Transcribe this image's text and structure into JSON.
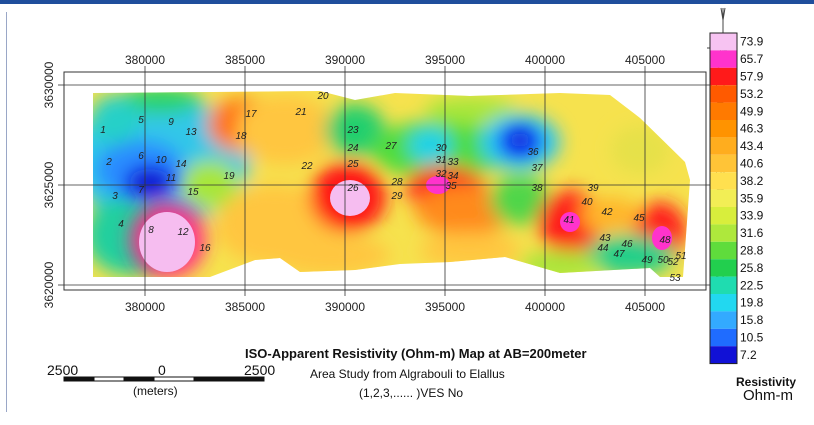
{
  "map": {
    "title": "ISO-Apparent Resistivity (Ohm-m) Map at AB=200meter",
    "subtitle": "Area Study from Algrabouli to Elallus",
    "ves_note": "(1,2,3,...... )VES No",
    "x_ticks": [
      "380000",
      "385000",
      "390000",
      "395000",
      "400000",
      "405000"
    ],
    "y_ticks": [
      "3630000",
      "3625000",
      "3620000"
    ],
    "north_label": "N",
    "ves_points": [
      {
        "label": "1",
        "x": 377900,
        "y": 3627600
      },
      {
        "label": "2",
        "x": 378200,
        "y": 3626000
      },
      {
        "label": "3",
        "x": 378500,
        "y": 3624300
      },
      {
        "label": "4",
        "x": 378800,
        "y": 3622900
      },
      {
        "label": "5",
        "x": 379800,
        "y": 3628100
      },
      {
        "label": "6",
        "x": 379800,
        "y": 3626300
      },
      {
        "label": "7",
        "x": 379800,
        "y": 3624600
      },
      {
        "label": "8",
        "x": 380300,
        "y": 3622600
      },
      {
        "label": "9",
        "x": 381300,
        "y": 3628000
      },
      {
        "label": "10",
        "x": 380800,
        "y": 3626100
      },
      {
        "label": "11",
        "x": 381300,
        "y": 3625200
      },
      {
        "label": "12",
        "x": 381900,
        "y": 3622500
      },
      {
        "label": "13",
        "x": 382300,
        "y": 3627500
      },
      {
        "label": "14",
        "x": 381800,
        "y": 3625900
      },
      {
        "label": "15",
        "x": 382400,
        "y": 3624500
      },
      {
        "label": "16",
        "x": 383000,
        "y": 3621700
      },
      {
        "label": "17",
        "x": 385300,
        "y": 3628400
      },
      {
        "label": "18",
        "x": 384800,
        "y": 3627300
      },
      {
        "label": "19",
        "x": 384200,
        "y": 3625300
      },
      {
        "label": "20",
        "x": 388900,
        "y": 3629300
      },
      {
        "label": "21",
        "x": 387800,
        "y": 3628500
      },
      {
        "label": "22",
        "x": 388100,
        "y": 3625800
      },
      {
        "label": "23",
        "x": 390400,
        "y": 3627600
      },
      {
        "label": "24",
        "x": 390400,
        "y": 3626700
      },
      {
        "label": "25",
        "x": 390400,
        "y": 3625900
      },
      {
        "label": "26",
        "x": 390400,
        "y": 3624700
      },
      {
        "label": "27",
        "x": 392300,
        "y": 3626800
      },
      {
        "label": "28",
        "x": 392600,
        "y": 3625000
      },
      {
        "label": "29",
        "x": 392600,
        "y": 3624300
      },
      {
        "label": "30",
        "x": 394800,
        "y": 3626700
      },
      {
        "label": "31",
        "x": 394800,
        "y": 3626100
      },
      {
        "label": "32",
        "x": 394800,
        "y": 3625400
      },
      {
        "label": "33",
        "x": 395400,
        "y": 3626000
      },
      {
        "label": "34",
        "x": 395400,
        "y": 3625300
      },
      {
        "label": "35",
        "x": 395300,
        "y": 3624800
      },
      {
        "label": "36",
        "x": 399400,
        "y": 3626500
      },
      {
        "label": "37",
        "x": 399600,
        "y": 3625700
      },
      {
        "label": "38",
        "x": 399600,
        "y": 3624700
      },
      {
        "label": "39",
        "x": 402400,
        "y": 3624700
      },
      {
        "label": "40",
        "x": 402100,
        "y": 3624000
      },
      {
        "label": "41",
        "x": 401200,
        "y": 3623100
      },
      {
        "label": "42",
        "x": 403100,
        "y": 3623500
      },
      {
        "label": "43",
        "x": 403000,
        "y": 3622200
      },
      {
        "label": "44",
        "x": 402900,
        "y": 3621700
      },
      {
        "label": "45",
        "x": 404700,
        "y": 3623200
      },
      {
        "label": "46",
        "x": 404100,
        "y": 3621900
      },
      {
        "label": "47",
        "x": 403700,
        "y": 3621400
      },
      {
        "label": "48",
        "x": 406000,
        "y": 3622100
      },
      {
        "label": "49",
        "x": 405100,
        "y": 3621100
      },
      {
        "label": "50",
        "x": 405900,
        "y": 3621100
      },
      {
        "label": "51",
        "x": 406800,
        "y": 3621300
      },
      {
        "label": "52",
        "x": 406400,
        "y": 3621000
      },
      {
        "label": "53",
        "x": 406500,
        "y": 3620200
      }
    ]
  },
  "scale_bar": {
    "left_label": "2500",
    "middle_label": "0",
    "right_label": "2500",
    "unit_label": "(meters)"
  },
  "legend": {
    "values": [
      "73.9",
      "65.7",
      "57.9",
      "53.2",
      "49.9",
      "46.3",
      "43.4",
      "40.6",
      "38.2",
      "35.9",
      "33.9",
      "31.6",
      "28.8",
      "25.8",
      "22.5",
      "19.8",
      "15.8",
      "10.5",
      "7.2"
    ],
    "colors": [
      "#f7c3f2",
      "#ff33cc",
      "#ff1a1a",
      "#ff5a00",
      "#ff7a00",
      "#ff9300",
      "#ffad1e",
      "#ffc437",
      "#ffe04f",
      "#f2ee55",
      "#d8ee3c",
      "#aee83c",
      "#5fdc3c",
      "#22cf4e",
      "#1fdcb0",
      "#22d8f0",
      "#33aaff",
      "#1f6cff",
      "#1111d6"
    ],
    "title": "Resistivity",
    "units": "Ohm-m"
  }
}
